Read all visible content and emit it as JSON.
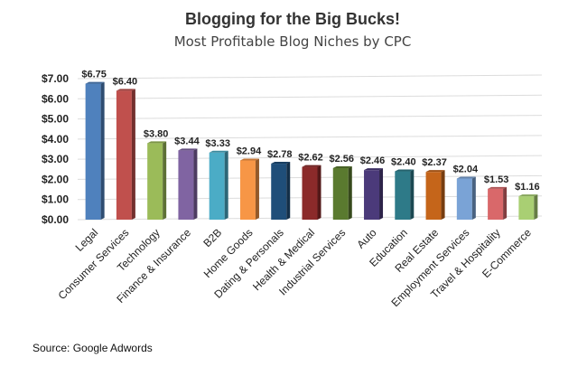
{
  "chart_data": {
    "type": "bar",
    "title": "Blogging for the Big Bucks!",
    "subtitle": "Most Profitable Blog Niches by CPC",
    "source": "Source: Google Adwords",
    "categories": [
      "Legal",
      "Consumer Services",
      "Technology",
      "Finance & Insurance",
      "B2B",
      "Home Goods",
      "Dating & Personals",
      "Health & Medical",
      "Industrial Services",
      "Auto",
      "Education",
      "Real Estate",
      "Employment Services",
      "Travel & Hospitality",
      "E-Commerce"
    ],
    "values": [
      6.75,
      6.4,
      3.8,
      3.44,
      3.33,
      2.94,
      2.78,
      2.62,
      2.56,
      2.46,
      2.4,
      2.37,
      2.04,
      1.53,
      1.16
    ],
    "value_labels": [
      "$6.75",
      "$6.40",
      "$3.80",
      "$3.44",
      "$3.33",
      "$2.94",
      "$2.78",
      "$2.62",
      "$2.56",
      "$2.46",
      "$2.40",
      "$2.37",
      "$2.04",
      "$1.53",
      "$1.16"
    ],
    "colors": [
      "#4f81bd",
      "#c0504d",
      "#9bbb59",
      "#8064a2",
      "#4bacc6",
      "#f79646",
      "#1f4e79",
      "#8b2a2a",
      "#5a7a2f",
      "#4b3a7a",
      "#2e7a88",
      "#c5651a",
      "#7aa3d6",
      "#d9686a",
      "#a9cf73"
    ],
    "ylim": [
      0,
      7
    ],
    "yticks": [
      "$0.00",
      "$1.00",
      "$2.00",
      "$3.00",
      "$4.00",
      "$5.00",
      "$6.00",
      "$7.00"
    ],
    "xlabel": "",
    "ylabel": "",
    "grid": true
  }
}
